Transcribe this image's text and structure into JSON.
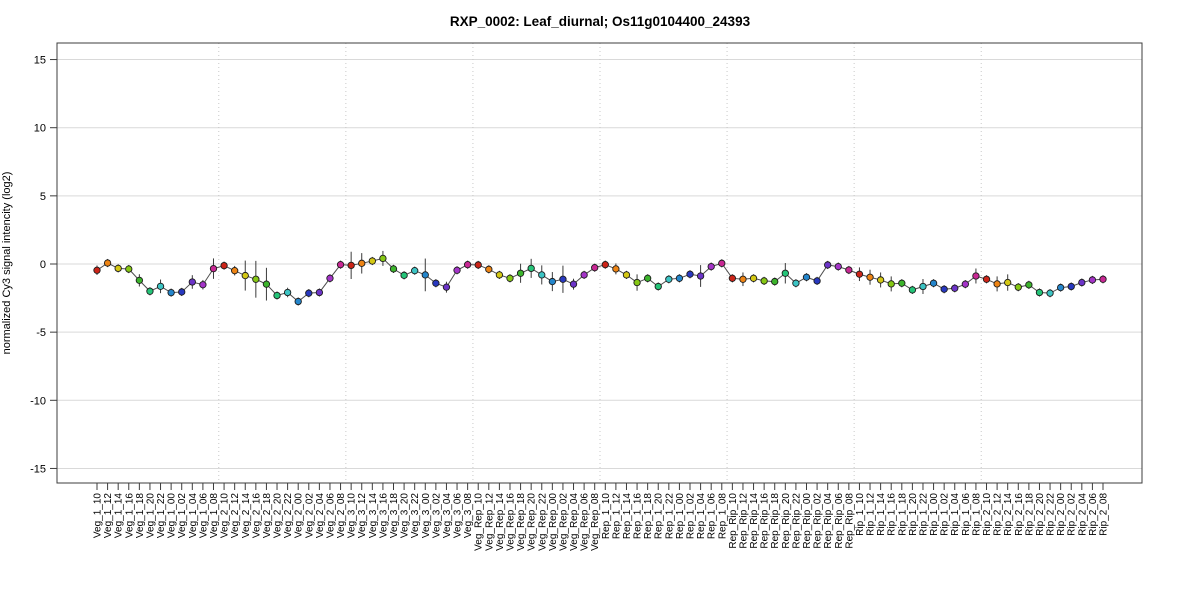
{
  "chart_data": {
    "type": "line",
    "title": "RXP_0002: Leaf_diurnal; Os11g0104400_24393",
    "ylabel": "normalized Cy3 signal intencity (log2)",
    "yticks": [
      15,
      10,
      5,
      0,
      -5,
      -10,
      -15
    ],
    "ylim": [
      -16.1,
      16.2
    ],
    "grid": {
      "horizontal": "solid",
      "vertical": "dotted-group-separators"
    },
    "legend": "none",
    "group_size": 12,
    "point_color_cycle": [
      "#cc2418",
      "#ee8414",
      "#d4c814",
      "#86c814",
      "#3cb42c",
      "#24c478",
      "#3cc4c4",
      "#2486cc",
      "#2838c0",
      "#6c34c8",
      "#a434c8",
      "#c82894"
    ],
    "categories": [
      "Veg_1_10",
      "Veg_1_12",
      "Veg_1_14",
      "Veg_1_16",
      "Veg_1_18",
      "Veg_1_20",
      "Veg_1_22",
      "Veg_1_00",
      "Veg_1_02",
      "Veg_1_04",
      "Veg_1_06",
      "Veg_1_08",
      "Veg_2_10",
      "Veg_2_12",
      "Veg_2_14",
      "Veg_2_16",
      "Veg_2_18",
      "Veg_2_20",
      "Veg_2_22",
      "Veg_2_00",
      "Veg_2_02",
      "Veg_2_04",
      "Veg_2_06",
      "Veg_2_08",
      "Veg_3_10",
      "Veg_3_12",
      "Veg_3_14",
      "Veg_3_16",
      "Veg_3_18",
      "Veg_3_20",
      "Veg_3_22",
      "Veg_3_00",
      "Veg_3_02",
      "Veg_3_04",
      "Veg_3_06",
      "Veg_3_08",
      "Veg_Rep_10",
      "Veg_Rep_12",
      "Veg_Rep_14",
      "Veg_Rep_16",
      "Veg_Rep_18",
      "Veg_Rep_20",
      "Veg_Rep_22",
      "Veg_Rep_00",
      "Veg_Rep_02",
      "Veg_Rep_04",
      "Veg_Rep_06",
      "Veg_Rep_08",
      "Rep_1_10",
      "Rep_1_12",
      "Rep_1_14",
      "Rep_1_16",
      "Rep_1_18",
      "Rep_1_20",
      "Rep_1_22",
      "Rep_1_00",
      "Rep_1_02",
      "Rep_1_04",
      "Rep_1_06",
      "Rep_1_08",
      "Rep_Rip_10",
      "Rep_Rip_12",
      "Rep_Rip_14",
      "Rep_Rip_16",
      "Rep_Rip_18",
      "Rep_Rip_20",
      "Rep_Rip_22",
      "Rep_Rip_00",
      "Rep_Rip_02",
      "Rep_Rip_04",
      "Rep_Rip_06",
      "Rep_Rip_08",
      "Rip_1_10",
      "Rip_1_12",
      "Rip_1_14",
      "Rip_1_16",
      "Rip_1_18",
      "Rip_1_20",
      "Rip_1_22",
      "Rip_1_00",
      "Rip_1_02",
      "Rip_1_04",
      "Rip_1_06",
      "Rip_1_08",
      "Rip_2_10",
      "Rip_2_12",
      "Rip_2_14",
      "Rip_2_16",
      "Rip_2_18",
      "Rip_2_20",
      "Rip_2_22",
      "Rip_2_00",
      "Rip_2_02",
      "Rip_2_04",
      "Rip_2_06",
      "Rip_2_08"
    ],
    "series": [
      {
        "name": "normalized Cy3 signal",
        "values": [
          -0.46,
          0.07,
          -0.32,
          -0.37,
          -1.2,
          -2.0,
          -1.64,
          -2.1,
          -2.05,
          -1.32,
          -1.52,
          -0.34,
          -0.12,
          -0.49,
          -0.85,
          -1.12,
          -1.48,
          -2.31,
          -2.09,
          -2.75,
          -2.14,
          -2.09,
          -1.05,
          -0.05,
          -0.1,
          0.05,
          0.22,
          0.41,
          -0.36,
          -0.83,
          -0.49,
          -0.8,
          -1.41,
          -1.7,
          -0.46,
          -0.05,
          -0.07,
          -0.39,
          -0.8,
          -1.05,
          -0.68,
          -0.32,
          -0.8,
          -1.29,
          -1.12,
          -1.48,
          -0.8,
          -0.27,
          -0.05,
          -0.36,
          -0.8,
          -1.36,
          -1.05,
          -1.65,
          -1.12,
          -1.05,
          -0.75,
          -0.88,
          -0.19,
          0.05,
          -1.05,
          -1.12,
          -1.05,
          -1.24,
          -1.29,
          -0.68,
          -1.41,
          -0.97,
          -1.24,
          -0.07,
          -0.19,
          -0.44,
          -0.75,
          -0.97,
          -1.17,
          -1.46,
          -1.41,
          -1.9,
          -1.65,
          -1.41,
          -1.85,
          -1.78,
          -1.48,
          -0.88,
          -1.12,
          -1.46,
          -1.36,
          -1.7,
          -1.53,
          -2.09,
          -2.14,
          -1.73,
          -1.65,
          -1.36,
          -1.17,
          -1.12
        ],
        "errors": [
          0.35,
          0.3,
          0.3,
          0.3,
          0.45,
          0.3,
          0.5,
          0.3,
          0.3,
          0.5,
          0.35,
          0.75,
          0.3,
          0.35,
          1.1,
          1.35,
          1.2,
          0.3,
          0.35,
          0.3,
          0.3,
          0.3,
          0.3,
          0.3,
          1.0,
          0.75,
          0.3,
          0.55,
          0.3,
          0.3,
          0.3,
          1.2,
          0.3,
          0.4,
          0.3,
          0.3,
          0.3,
          0.3,
          0.3,
          0.3,
          0.7,
          0.7,
          0.7,
          0.7,
          1.0,
          0.4,
          0.3,
          0.3,
          0.3,
          0.4,
          0.3,
          0.6,
          0.3,
          0.3,
          0.3,
          0.3,
          0.3,
          0.8,
          0.3,
          0.3,
          0.3,
          0.5,
          0.3,
          0.3,
          0.3,
          0.75,
          0.3,
          0.3,
          0.3,
          0.3,
          0.3,
          0.3,
          0.5,
          0.55,
          0.55,
          0.55,
          0.3,
          0.3,
          0.55,
          0.3,
          0.3,
          0.3,
          0.3,
          0.55,
          0.3,
          0.55,
          0.6,
          0.3,
          0.3,
          0.3,
          0.3,
          0.3,
          0.3,
          0.3,
          0.3,
          0.3
        ]
      }
    ]
  },
  "colors": {
    "background": "#ffffff",
    "grid_line": "#d9d9d9",
    "separator_line": "#c8c8c8",
    "frame": "#3c3c3c",
    "data_line": "#4d4d4d",
    "error_bar": "#3a3a3a",
    "point_stroke": "#1c1c1c",
    "text": "#000000"
  }
}
